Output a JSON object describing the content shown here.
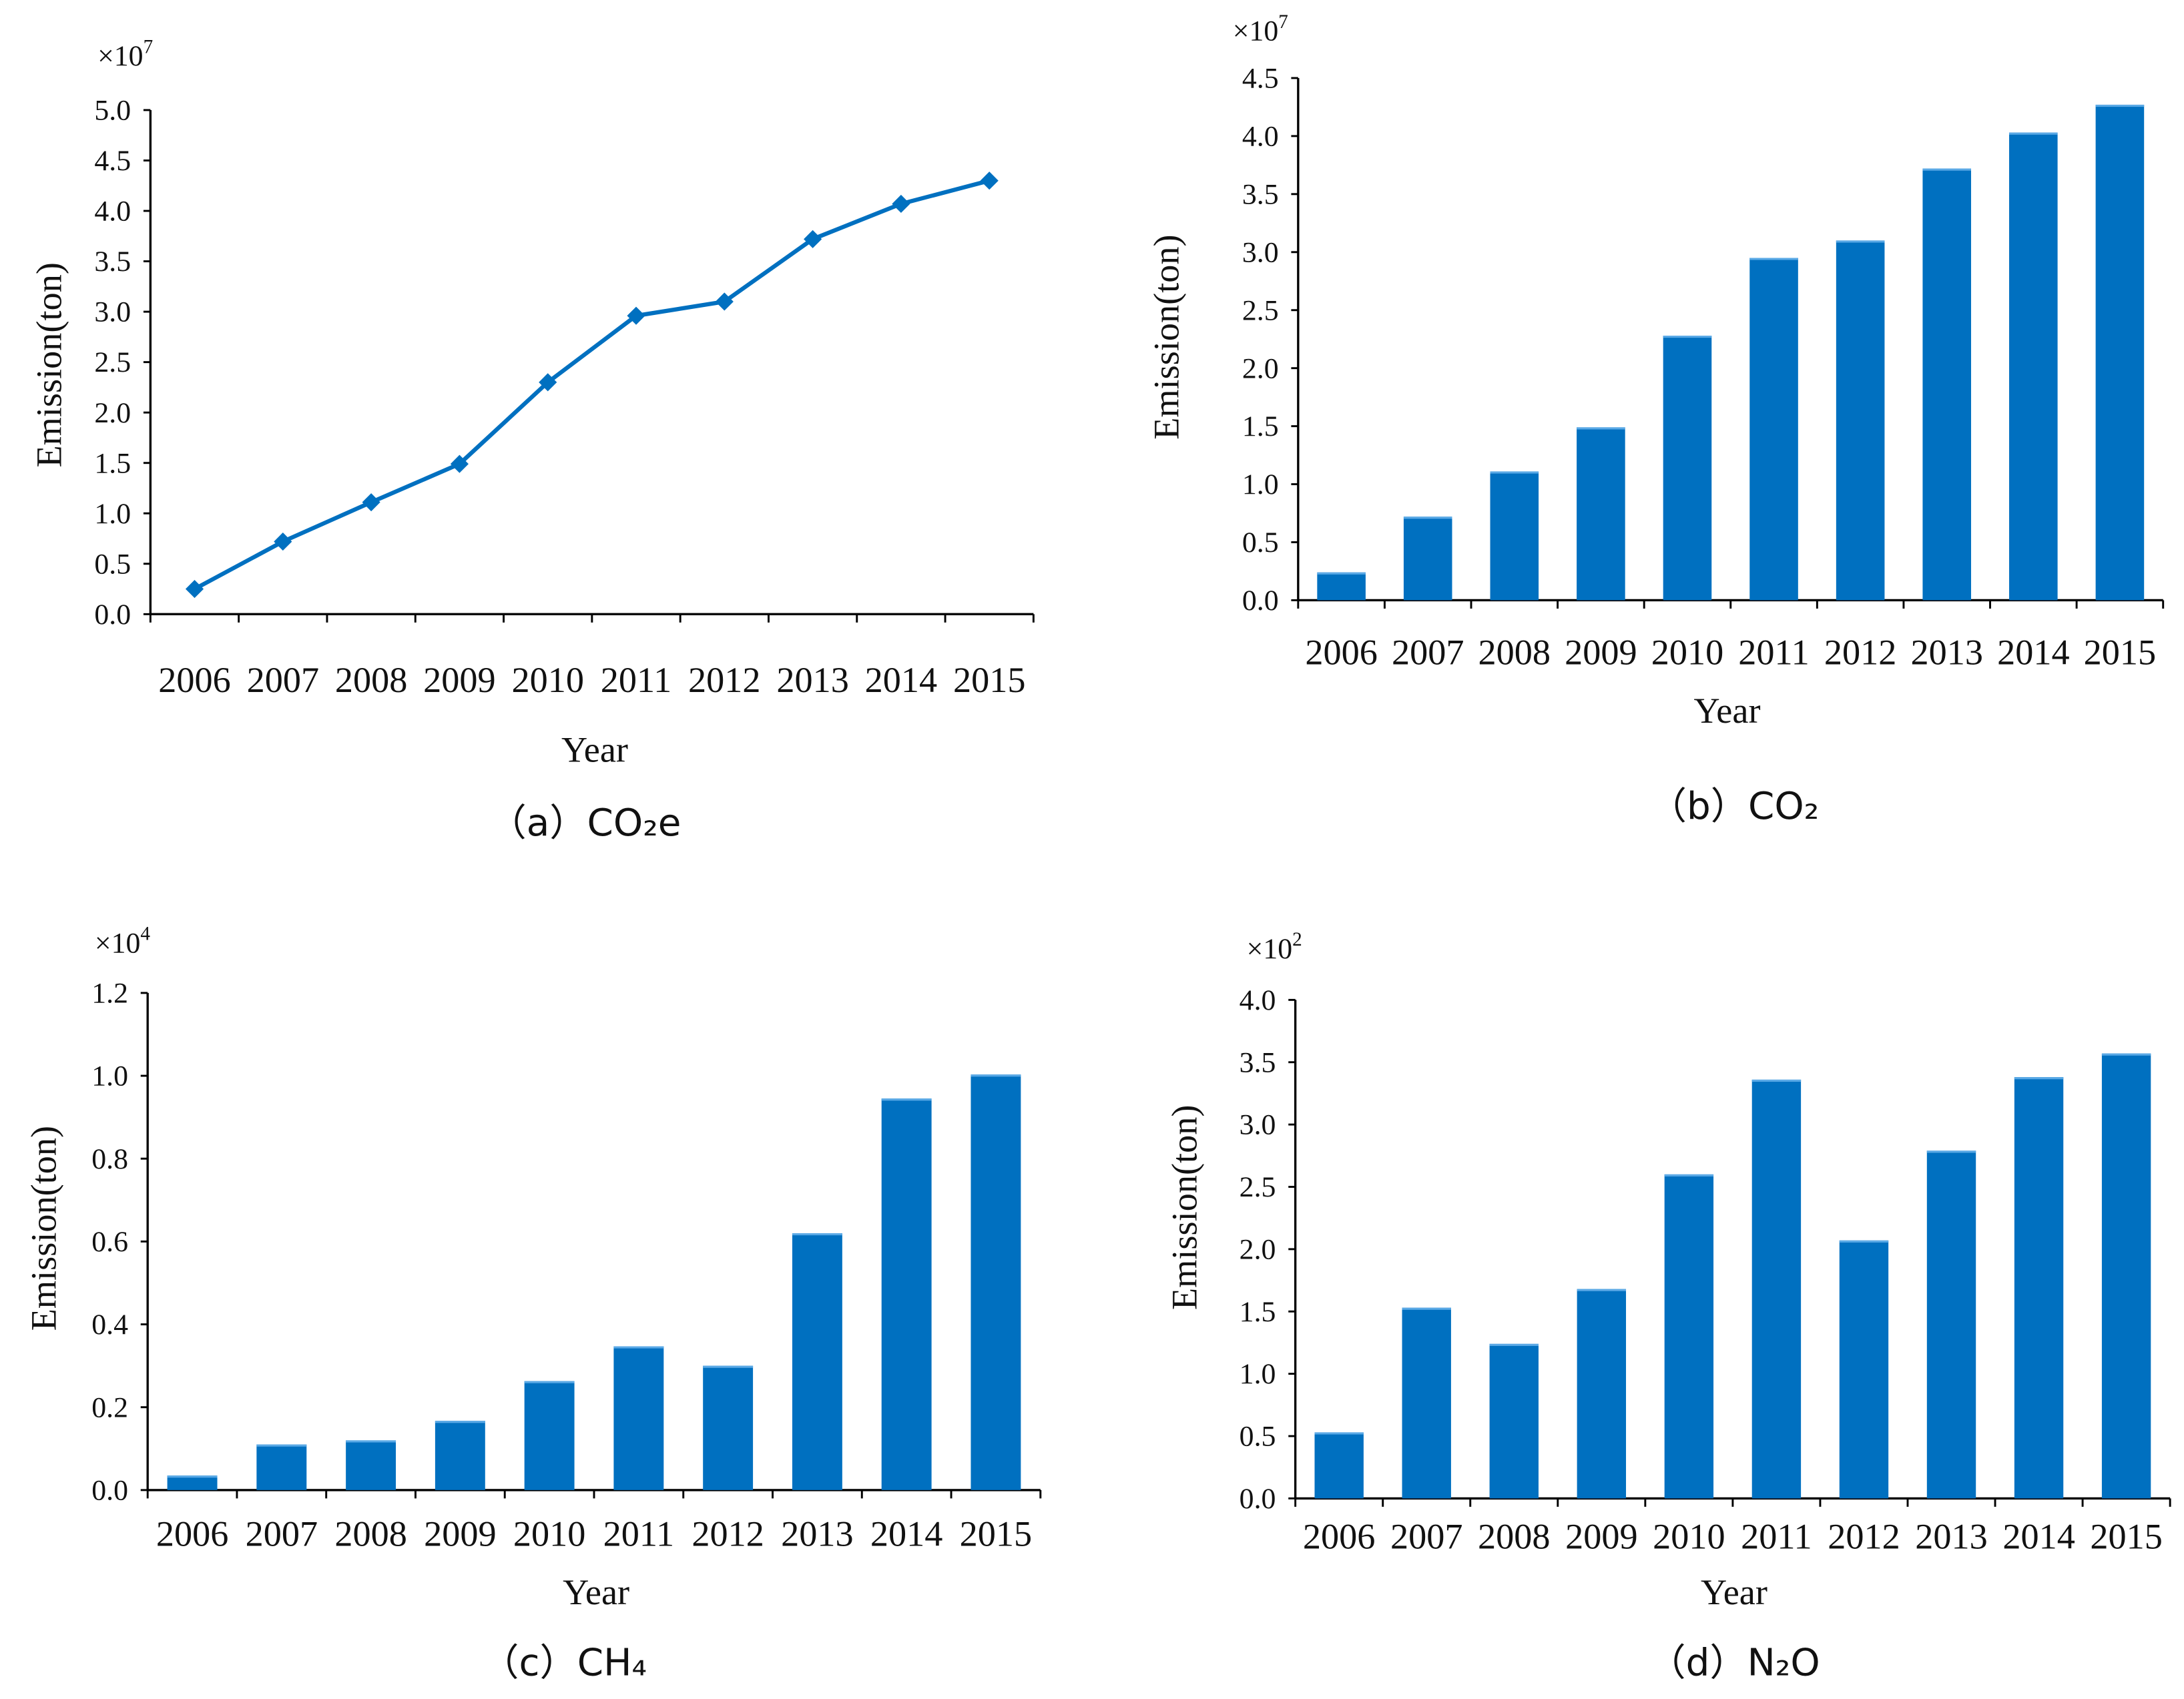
{
  "accent_color": "#0070C0",
  "chart_data": [
    {
      "id": "a",
      "type": "line",
      "caption": "（a）CO₂e",
      "multiplier": "×10",
      "exponent": "7",
      "xlabel": "Year",
      "ylabel": "Emission(ton)",
      "categories": [
        "2006",
        "2007",
        "2008",
        "2009",
        "2010",
        "2011",
        "2012",
        "2013",
        "2014",
        "2015"
      ],
      "values": [
        0.25,
        0.72,
        1.11,
        1.49,
        2.3,
        2.96,
        3.1,
        3.72,
        4.07,
        4.3
      ],
      "ylim": [
        0,
        5.0
      ],
      "yticks": [
        "0.0",
        "0.5",
        "1.0",
        "1.5",
        "2.0",
        "2.5",
        "3.0",
        "3.5",
        "4.0",
        "4.5",
        "5.0"
      ],
      "ystep": 0.5,
      "marker": "diamond",
      "grid": false
    },
    {
      "id": "b",
      "type": "bar",
      "caption": "（b）CO₂",
      "multiplier": "×10",
      "exponent": "7",
      "xlabel": "Year",
      "ylabel": "Emission(ton)",
      "categories": [
        "2006",
        "2007",
        "2008",
        "2009",
        "2010",
        "2011",
        "2012",
        "2013",
        "2014",
        "2015"
      ],
      "values": [
        0.24,
        0.72,
        1.11,
        1.49,
        2.28,
        2.95,
        3.1,
        3.72,
        4.03,
        4.27
      ],
      "ylim": [
        0,
        4.5
      ],
      "yticks": [
        "0.0",
        "0.5",
        "1.0",
        "1.5",
        "2.0",
        "2.5",
        "3.0",
        "3.5",
        "4.0",
        "4.5"
      ],
      "ystep": 0.5,
      "grid": false
    },
    {
      "id": "c",
      "type": "bar",
      "caption": "（c）CH₄",
      "multiplier": "×10",
      "exponent": "4",
      "xlabel": "Year",
      "ylabel": "Emission(ton)",
      "categories": [
        "2006",
        "2007",
        "2008",
        "2009",
        "2010",
        "2011",
        "2012",
        "2013",
        "2014",
        "2015"
      ],
      "values": [
        0.035,
        0.11,
        0.12,
        0.167,
        0.263,
        0.347,
        0.3,
        0.62,
        0.945,
        1.003
      ],
      "ylim": [
        0,
        1.2
      ],
      "yticks": [
        "0.0",
        "0.2",
        "0.4",
        "0.6",
        "0.8",
        "1.0",
        "1.2"
      ],
      "ystep": 0.2,
      "grid": false
    },
    {
      "id": "d",
      "type": "bar",
      "caption": "（d）N₂O",
      "multiplier": "×10",
      "exponent": "2",
      "xlabel": "Year",
      "ylabel": "Emission(ton)",
      "categories": [
        "2006",
        "2007",
        "2008",
        "2009",
        "2010",
        "2011",
        "2012",
        "2013",
        "2014",
        "2015"
      ],
      "values": [
        0.53,
        1.53,
        1.24,
        1.68,
        2.6,
        3.36,
        2.07,
        2.79,
        3.38,
        3.57
      ],
      "ylim": [
        0,
        4.0
      ],
      "yticks": [
        "0.0",
        "0.5",
        "1.0",
        "1.5",
        "2.0",
        "2.5",
        "3.0",
        "3.5",
        "4.0"
      ],
      "ystep": 0.5,
      "grid": false
    }
  ]
}
